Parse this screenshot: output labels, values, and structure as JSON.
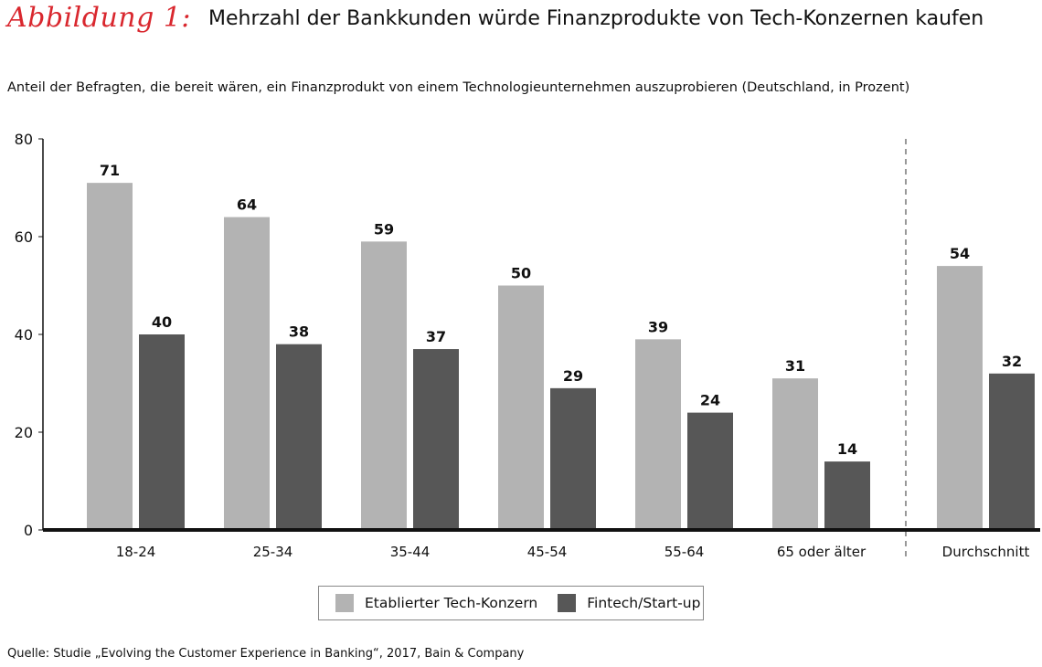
{
  "figure": {
    "label": "Abbildung 1:",
    "title": "Mehrzahl der Bankkunden würde Finanzprodukte von Tech-Konzernen kaufen",
    "subtitle": "Anteil der Befragten, die bereit wären, ein Finanzprodukt von einem Technologieunternehmen auszuprobieren (Deutschland, in Prozent)",
    "source": "Quelle: Studie „Evolving the Customer Experience in Banking“, 2017, Bain & Company"
  },
  "colors": {
    "label": "#d9272e",
    "series_a": "#b3b3b3",
    "series_b": "#575757",
    "axis": "#111111"
  },
  "chart_data": {
    "type": "bar",
    "title": "Mehrzahl der Bankkunden würde Finanzprodukte von Tech-Konzernen kaufen",
    "ylabel": "",
    "xlabel": "",
    "ylim": [
      0,
      80
    ],
    "yticks": [
      0,
      20,
      40,
      60,
      80
    ],
    "grid": false,
    "legend": "bottom-center",
    "categories": [
      "18-24",
      "25-34",
      "35-44",
      "45-54",
      "55-64",
      "65 oder älter",
      "Durchschnitt"
    ],
    "separator_before": "Durchschnitt",
    "series": [
      {
        "name": "Etablierter Tech-Konzern",
        "values": [
          71,
          64,
          59,
          50,
          39,
          31,
          54
        ]
      },
      {
        "name": "Fintech/Start-up",
        "values": [
          40,
          38,
          37,
          29,
          24,
          14,
          32
        ]
      }
    ]
  }
}
